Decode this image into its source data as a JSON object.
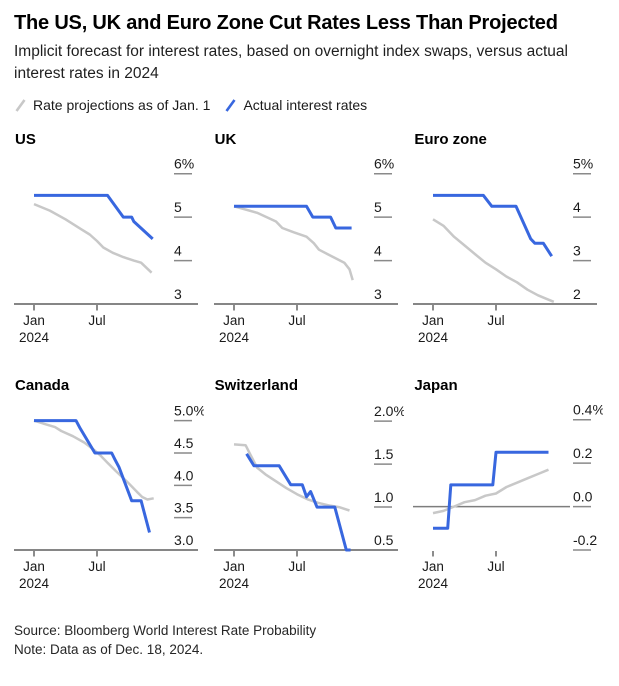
{
  "header": {
    "title": "The US, UK and Euro Zone Cut Rates Less Than Projected",
    "subtitle": "Implicit forecast for interest rates, based on overnight index swaps, versus actual interest rates in 2024"
  },
  "legend": [
    {
      "key": "projection",
      "label": "Rate projections as of Jan. 1"
    },
    {
      "key": "actual",
      "label": "Actual interest rates"
    }
  ],
  "colors": {
    "actual": "#3867DF",
    "projection": "#C8C8C8",
    "axis": "#3F3F3F",
    "tick": "#8A8A8A",
    "zero_line": "#7D7D7D",
    "text": "#1A1A1A"
  },
  "footer": {
    "source": "Source: Bloomberg World Interest Rate Probability",
    "note": "Note: Data as of Dec. 18, 2024."
  },
  "chart_data": [
    {
      "type": "line",
      "title": "US",
      "y_top": 6.5,
      "y_base": 3.0,
      "baseline": true,
      "zero_line": false,
      "y_ticks": [
        {
          "label": "6%",
          "value": 6
        },
        {
          "label": "5",
          "value": 5
        },
        {
          "label": "4",
          "value": 4
        },
        {
          "label": "3",
          "value": 3
        }
      ],
      "x_ticks": [
        {
          "label": "Jan",
          "sublabel": "2024",
          "month": 0
        },
        {
          "label": "Jul",
          "sublabel": "",
          "month": 6
        }
      ],
      "series": [
        {
          "key": "projection",
          "name": "Rate projections as of Jan. 1",
          "points": [
            [
              0,
              5.3
            ],
            [
              1.5,
              5.15
            ],
            [
              3.0,
              4.95
            ],
            [
              4.5,
              4.72
            ],
            [
              5.3,
              4.6
            ],
            [
              6.0,
              4.45
            ],
            [
              6.6,
              4.3
            ],
            [
              7.5,
              4.18
            ],
            [
              8.5,
              4.08
            ],
            [
              9.5,
              4.0
            ],
            [
              10.2,
              3.95
            ],
            [
              11.2,
              3.72
            ]
          ]
        },
        {
          "key": "actual",
          "name": "Actual interest rates",
          "points": [
            [
              0,
              5.5
            ],
            [
              7.0,
              5.5
            ],
            [
              8.5,
              5.0
            ],
            [
              9.3,
              5.0
            ],
            [
              9.5,
              4.9
            ],
            [
              11.3,
              4.5
            ]
          ]
        }
      ]
    },
    {
      "type": "line",
      "title": "UK",
      "y_top": 6.5,
      "y_base": 3.0,
      "baseline": true,
      "zero_line": false,
      "y_ticks": [
        {
          "label": "6%",
          "value": 6
        },
        {
          "label": "5",
          "value": 5
        },
        {
          "label": "4",
          "value": 4
        },
        {
          "label": "3",
          "value": 3
        }
      ],
      "x_ticks": [
        {
          "label": "Jan",
          "sublabel": "2024",
          "month": 0
        },
        {
          "label": "Jul",
          "sublabel": "",
          "month": 6
        }
      ],
      "series": [
        {
          "key": "projection",
          "name": "Rate projections as of Jan. 1",
          "points": [
            [
              0,
              5.25
            ],
            [
              2.2,
              5.1
            ],
            [
              4.0,
              4.9
            ],
            [
              4.6,
              4.75
            ],
            [
              5.7,
              4.65
            ],
            [
              6.9,
              4.55
            ],
            [
              7.6,
              4.4
            ],
            [
              8.1,
              4.25
            ],
            [
              8.9,
              4.15
            ],
            [
              9.7,
              4.05
            ],
            [
              10.5,
              3.95
            ],
            [
              11.0,
              3.8
            ],
            [
              11.3,
              3.55
            ]
          ]
        },
        {
          "key": "actual",
          "name": "Actual interest rates",
          "points": [
            [
              0,
              5.25
            ],
            [
              6.9,
              5.25
            ],
            [
              7.5,
              5.0
            ],
            [
              9.2,
              5.0
            ],
            [
              9.7,
              4.75
            ],
            [
              11.2,
              4.75
            ]
          ]
        }
      ]
    },
    {
      "type": "line",
      "title": "Euro zone",
      "y_top": 5.5,
      "y_base": 2.0,
      "baseline": true,
      "zero_line": false,
      "y_ticks": [
        {
          "label": "5%",
          "value": 5
        },
        {
          "label": "4",
          "value": 4
        },
        {
          "label": "3",
          "value": 3
        },
        {
          "label": "2",
          "value": 2
        }
      ],
      "x_ticks": [
        {
          "label": "Jan",
          "sublabel": "2024",
          "month": 0
        },
        {
          "label": "Jul",
          "sublabel": "",
          "month": 6
        }
      ],
      "series": [
        {
          "key": "projection",
          "name": "Rate projections as of Jan. 1",
          "points": [
            [
              0,
              3.95
            ],
            [
              1.0,
              3.8
            ],
            [
              2.0,
              3.55
            ],
            [
              3.0,
              3.35
            ],
            [
              4.0,
              3.15
            ],
            [
              5.0,
              2.95
            ],
            [
              6.0,
              2.8
            ],
            [
              7.0,
              2.63
            ],
            [
              8.0,
              2.5
            ],
            [
              9.0,
              2.33
            ],
            [
              10.0,
              2.2
            ],
            [
              11.0,
              2.1
            ],
            [
              11.5,
              2.05
            ]
          ]
        },
        {
          "key": "actual",
          "name": "Actual interest rates",
          "points": [
            [
              0,
              4.5
            ],
            [
              4.8,
              4.5
            ],
            [
              5.6,
              4.25
            ],
            [
              7.9,
              4.25
            ],
            [
              9.3,
              3.5
            ],
            [
              9.7,
              3.4
            ],
            [
              10.5,
              3.4
            ],
            [
              11.3,
              3.1
            ]
          ]
        }
      ]
    },
    {
      "type": "line",
      "title": "Canada",
      "y_top": 5.35,
      "y_base": 3.0,
      "baseline": true,
      "zero_line": false,
      "y_ticks": [
        {
          "label": "5.0%",
          "value": 5.0
        },
        {
          "label": "4.5",
          "value": 4.5
        },
        {
          "label": "4.0",
          "value": 4.0
        },
        {
          "label": "3.5",
          "value": 3.5
        },
        {
          "label": "3.0",
          "value": 3.0
        }
      ],
      "x_ticks": [
        {
          "label": "Jan",
          "sublabel": "2024",
          "month": 0
        },
        {
          "label": "Jul",
          "sublabel": "",
          "month": 6
        }
      ],
      "series": [
        {
          "key": "projection",
          "name": "Rate projections as of Jan. 1",
          "points": [
            [
              0,
              5.0
            ],
            [
              1.0,
              4.95
            ],
            [
              2.0,
              4.9
            ],
            [
              2.6,
              4.84
            ],
            [
              3.7,
              4.76
            ],
            [
              4.8,
              4.66
            ],
            [
              5.7,
              4.55
            ],
            [
              6.4,
              4.45
            ],
            [
              7.0,
              4.35
            ],
            [
              7.8,
              4.22
            ],
            [
              8.9,
              4.05
            ],
            [
              9.8,
              3.9
            ],
            [
              10.3,
              3.82
            ],
            [
              10.8,
              3.78
            ],
            [
              11.4,
              3.8
            ]
          ]
        },
        {
          "key": "actual",
          "name": "Actual interest rates",
          "points": [
            [
              0,
              5.0
            ],
            [
              4.0,
              5.0
            ],
            [
              4.4,
              4.88
            ],
            [
              5.8,
              4.5
            ],
            [
              7.4,
              4.5
            ],
            [
              7.7,
              4.4
            ],
            [
              8.1,
              4.28
            ],
            [
              9.3,
              3.76
            ],
            [
              10.2,
              3.76
            ],
            [
              11.0,
              3.27
            ]
          ]
        }
      ]
    },
    {
      "type": "line",
      "title": "Switzerland",
      "y_top": 2.27,
      "y_base": 0.5,
      "baseline": true,
      "zero_line": false,
      "y_ticks": [
        {
          "label": "2.0%",
          "value": 2.0
        },
        {
          "label": "1.5",
          "value": 1.5
        },
        {
          "label": "1.0",
          "value": 1.0
        },
        {
          "label": "0.5",
          "value": 0.5
        }
      ],
      "x_ticks": [
        {
          "label": "Jan",
          "sublabel": "2024",
          "month": 0
        },
        {
          "label": "Jul",
          "sublabel": "",
          "month": 6
        }
      ],
      "series": [
        {
          "key": "projection",
          "name": "Rate projections as of Jan. 1",
          "points": [
            [
              0,
              1.73
            ],
            [
              1.1,
              1.72
            ],
            [
              1.6,
              1.6
            ],
            [
              2.2,
              1.46
            ],
            [
              3.0,
              1.38
            ],
            [
              4.0,
              1.3
            ],
            [
              5.0,
              1.22
            ],
            [
              6.0,
              1.15
            ],
            [
              7.0,
              1.09
            ],
            [
              8.0,
              1.05
            ],
            [
              9.0,
              1.02
            ],
            [
              10.0,
              1.0
            ],
            [
              11.0,
              0.96
            ]
          ]
        },
        {
          "key": "actual",
          "name": "Actual interest rates",
          "points": [
            [
              1.2,
              1.62
            ],
            [
              1.9,
              1.48
            ],
            [
              4.3,
              1.48
            ],
            [
              5.4,
              1.26
            ],
            [
              6.5,
              1.26
            ],
            [
              6.9,
              1.12
            ],
            [
              7.3,
              1.18
            ],
            [
              7.9,
              1.0
            ],
            [
              9.6,
              1.0
            ],
            [
              10.7,
              0.5
            ],
            [
              11.1,
              0.5
            ]
          ]
        }
      ]
    },
    {
      "type": "line",
      "title": "Japan",
      "y_top": 0.5,
      "y_base": -0.2,
      "baseline": false,
      "zero_line": true,
      "y_ticks": [
        {
          "label": "0.4%",
          "value": 0.4
        },
        {
          "label": "0.2",
          "value": 0.2
        },
        {
          "label": "0.0",
          "value": 0.0
        },
        {
          "label": "-0.2",
          "value": -0.2
        }
      ],
      "x_ticks": [
        {
          "label": "Jan",
          "sublabel": "2024",
          "month": 0
        },
        {
          "label": "Jul",
          "sublabel": "",
          "month": 6
        }
      ],
      "series": [
        {
          "key": "projection",
          "name": "Rate projections as of Jan. 1",
          "points": [
            [
              0,
              -0.03
            ],
            [
              1.0,
              -0.02
            ],
            [
              2.0,
              0.0
            ],
            [
              3.0,
              0.02
            ],
            [
              4.0,
              0.03
            ],
            [
              5.0,
              0.05
            ],
            [
              6.0,
              0.06
            ],
            [
              7.0,
              0.09
            ],
            [
              8.0,
              0.11
            ],
            [
              9.0,
              0.13
            ],
            [
              10.0,
              0.15
            ],
            [
              11.0,
              0.17
            ]
          ]
        },
        {
          "key": "actual",
          "name": "Actual interest rates",
          "points": [
            [
              0,
              -0.1
            ],
            [
              1.4,
              -0.1
            ],
            [
              1.7,
              0.1
            ],
            [
              5.7,
              0.1
            ],
            [
              6.0,
              0.25
            ],
            [
              11.0,
              0.25
            ]
          ]
        }
      ]
    }
  ]
}
